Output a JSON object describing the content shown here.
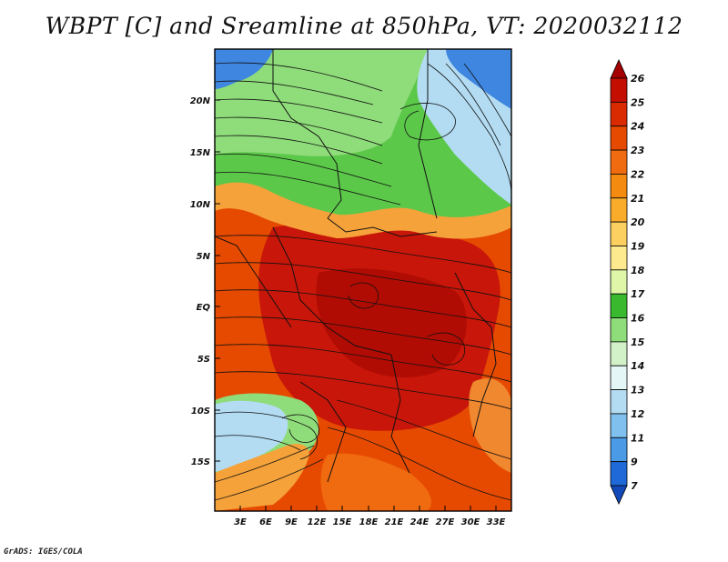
{
  "title": "WBPT [C] and Sreamline at 850hPa, VT: 2020032112",
  "credit": "GrADS: IGES/COLA",
  "map": {
    "lat_labels": [
      "20N",
      "15N",
      "10N",
      "5N",
      "EQ",
      "5S",
      "10S",
      "15S"
    ],
    "lon_labels": [
      "3E",
      "6E",
      "9E",
      "12E",
      "15E",
      "18E",
      "21E",
      "24E",
      "27E",
      "30E",
      "33E"
    ]
  },
  "colorbar": {
    "labels": [
      "26",
      "25",
      "24",
      "23",
      "22",
      "21",
      "20",
      "19",
      "18",
      "17",
      "16",
      "15",
      "14",
      "13",
      "12",
      "11",
      "9",
      "7"
    ],
    "colors": [
      "#a50000",
      "#c40e00",
      "#d92a00",
      "#e64a00",
      "#f06a10",
      "#f58a10",
      "#f8ac2a",
      "#fbcf60",
      "#fde98e",
      "#dff5a8",
      "#39b92e",
      "#8fdc7a",
      "#d2f1c8",
      "#e4f6f6",
      "#b3dcf2",
      "#80c0ee",
      "#4a9ae6",
      "#1f6ad8",
      "#1348b8"
    ]
  }
}
